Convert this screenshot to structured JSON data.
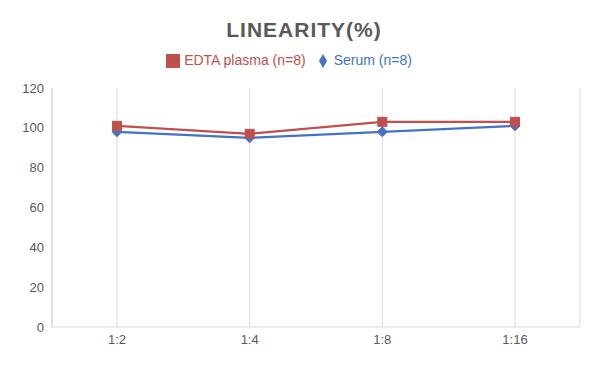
{
  "chart_data": {
    "type": "line",
    "title": "LINEARITY(%)",
    "categories": [
      "1:2",
      "1:4",
      "1:8",
      "1:16"
    ],
    "series": [
      {
        "name": "Serum (n=8)",
        "color": "#4472c4",
        "marker": "diamond",
        "values": [
          98,
          95,
          98,
          101
        ]
      },
      {
        "name": "EDTA plasma (n=8)",
        "color": "#c0504d",
        "marker": "square",
        "values": [
          101,
          97,
          103,
          103
        ]
      }
    ],
    "ylim": [
      0,
      120
    ],
    "yticks": [
      0,
      20,
      40,
      60,
      80,
      100,
      120
    ],
    "grid": true,
    "legend": "top"
  }
}
